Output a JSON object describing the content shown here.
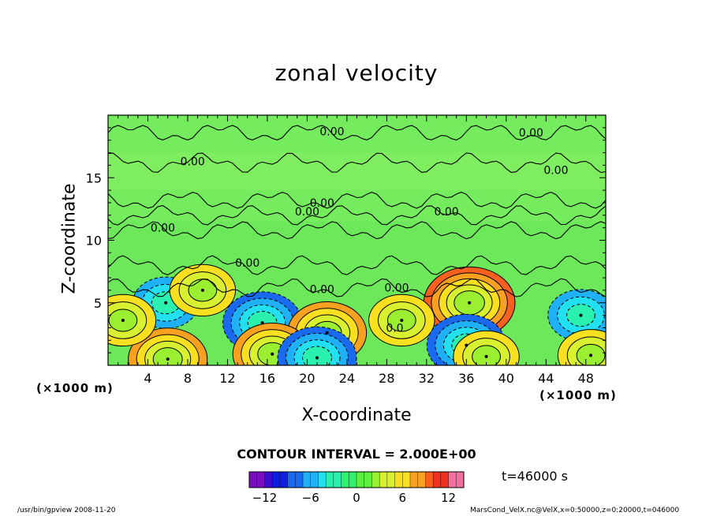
{
  "chart_data": {
    "type": "heatmap",
    "title": "zonal velocity",
    "xlabel": "X-coordinate",
    "ylabel": "Z-coordinate",
    "x_unit": "(×1000 m)",
    "y_unit": "(×1000 m)",
    "xlim": [
      0,
      50
    ],
    "ylim": [
      0,
      20
    ],
    "x_ticks": [
      4,
      8,
      12,
      16,
      20,
      24,
      28,
      32,
      36,
      40,
      44,
      48
    ],
    "y_ticks": [
      5,
      10,
      15
    ],
    "contour_labels": [
      {
        "text": "0.00",
        "x": 22.5,
        "z": 18.7
      },
      {
        "text": "0.00",
        "x": 42.5,
        "z": 18.6
      },
      {
        "text": "0.00",
        "x": 8.5,
        "z": 16.3
      },
      {
        "text": "0.00",
        "x": 45.0,
        "z": 15.6
      },
      {
        "text": "0.00",
        "x": 21.5,
        "z": 13.0
      },
      {
        "text": "0.00",
        "x": 20.0,
        "z": 12.3
      },
      {
        "text": "0.00",
        "x": 34.0,
        "z": 12.3
      },
      {
        "text": "0.00",
        "x": 5.5,
        "z": 11.0
      },
      {
        "text": "0.00",
        "x": 14.0,
        "z": 8.2
      },
      {
        "text": "0.00",
        "x": 21.5,
        "z": 6.1
      },
      {
        "text": "0.00",
        "x": 29.0,
        "z": 6.2
      },
      {
        "text": "0.0",
        "x": 28.8,
        "z": 3.0
      }
    ],
    "features": [
      {
        "type": "max",
        "x": 36.3,
        "z": 5.0,
        "value": 10
      },
      {
        "type": "min",
        "x": 5.8,
        "z": 5.0,
        "value": -6
      },
      {
        "type": "min",
        "x": 15.5,
        "z": 3.4,
        "value": -7
      },
      {
        "type": "max",
        "x": 22.0,
        "z": 2.6,
        "value": 7
      },
      {
        "type": "max",
        "x": 29.5,
        "z": 3.6,
        "value": 6
      },
      {
        "type": "min",
        "x": 36.0,
        "z": 1.6,
        "value": -7
      },
      {
        "type": "max",
        "x": 16.5,
        "z": 0.9,
        "value": 8
      },
      {
        "type": "max",
        "x": 6.0,
        "z": 0.5,
        "value": 8
      },
      {
        "type": "max",
        "x": 1.5,
        "z": 3.6,
        "value": 6
      },
      {
        "type": "max",
        "x": 9.5,
        "z": 6.0,
        "value": 5
      },
      {
        "type": "min",
        "x": 21.0,
        "z": 0.6,
        "value": -8
      },
      {
        "type": "max",
        "x": 38.0,
        "z": 0.7,
        "value": 6
      },
      {
        "type": "min",
        "x": 47.5,
        "z": 4.0,
        "value": -5
      },
      {
        "type": "max",
        "x": 48.5,
        "z": 0.8,
        "value": 6
      }
    ],
    "contour_interval": "CONTOUR INTERVAL = 2.000E+00",
    "colorbar": {
      "range": [
        -14,
        14
      ],
      "ticks": [
        -12,
        -6,
        0,
        6,
        12
      ],
      "colors": [
        "#7a0dbf",
        "#3d0ccf",
        "#0d1fe0",
        "#1a6af0",
        "#20b0f5",
        "#23e0f0",
        "#2af0b0",
        "#30f070",
        "#5cf040",
        "#9af030",
        "#d8f030",
        "#f8e020",
        "#f8a020",
        "#f86020",
        "#f03020",
        "#f070a0"
      ]
    },
    "time_label": "t=46000 s",
    "footer_left": "/usr/bin/gpview   2008-11-20",
    "footer_right": "MarsCond_VelX.nc@VelX,x=0:50000,z=0:20000,t=046000"
  }
}
